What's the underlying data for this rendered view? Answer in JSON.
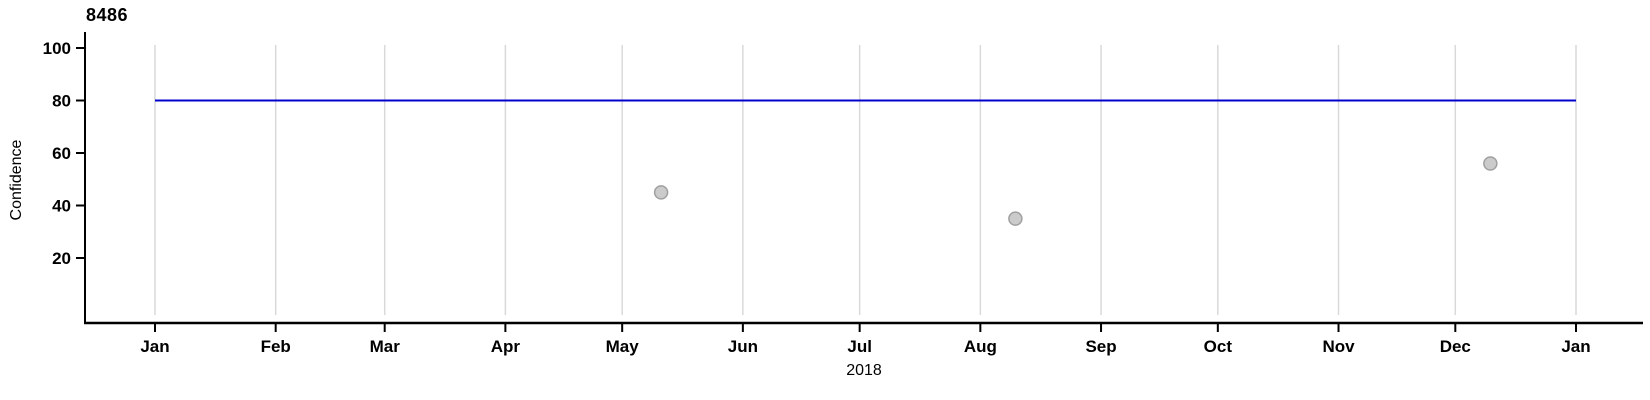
{
  "page": {
    "background": "#ffffff"
  },
  "chart_data": {
    "type": "scatter",
    "title": "8486",
    "xlabel": "2018",
    "ylabel": "Confidence",
    "grid": "vertical-major-only",
    "legend": false,
    "colors": {
      "axis": "#000000",
      "text": "#000000",
      "gridline": "#d9d9d9",
      "reference_line": "#0000cd",
      "point_fill": "#cbcbcb",
      "point_stroke": "#a0a0a0"
    },
    "x_axis": {
      "unit": "months",
      "year": "2018",
      "tick_labels": [
        "Jan",
        "Feb",
        "Mar",
        "Apr",
        "May",
        "Jun",
        "Jul",
        "Aug",
        "Sep",
        "Oct",
        "Nov",
        "Dec",
        "Jan"
      ],
      "tick_day_offsets": [
        0,
        31,
        59,
        90,
        120,
        151,
        181,
        212,
        243,
        273,
        304,
        334,
        365
      ]
    },
    "y_axis": {
      "ticks": [
        20,
        40,
        60,
        80,
        100
      ],
      "ylim": [
        0,
        101
      ]
    },
    "reference_line": {
      "value": 80,
      "span_day_offsets": [
        0,
        365
      ]
    },
    "points": [
      {
        "date": "2018-05-11",
        "x_day_offset": 130,
        "value": 45
      },
      {
        "date": "2018-08-10",
        "x_day_offset": 221,
        "value": 35
      },
      {
        "date": "2018-12-10",
        "x_day_offset": 343,
        "value": 56
      }
    ]
  }
}
